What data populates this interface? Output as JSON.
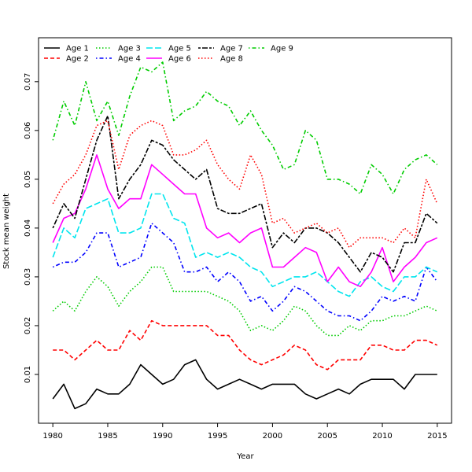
{
  "chart_data": {
    "type": "line",
    "title": "",
    "xlabel": "Year",
    "ylabel": "Stock mean weight",
    "xlim": [
      1978.7,
      2016.3
    ],
    "ylim": [
      0.0,
      0.079
    ],
    "x_ticks": [
      1980,
      1985,
      1990,
      1995,
      2000,
      2005,
      2010,
      2015
    ],
    "y_ticks": [
      0.01,
      0.02,
      0.03,
      0.04,
      0.05,
      0.06,
      0.07
    ],
    "grid": false,
    "legend_position": "top-left",
    "x": [
      1980,
      1981,
      1982,
      1983,
      1984,
      1985,
      1986,
      1987,
      1988,
      1989,
      1990,
      1991,
      1992,
      1993,
      1994,
      1995,
      1996,
      1997,
      1998,
      1999,
      2000,
      2001,
      2002,
      2003,
      2004,
      2005,
      2006,
      2007,
      2008,
      2009,
      2010,
      2011,
      2012,
      2013,
      2014,
      2015
    ],
    "series": [
      {
        "name": "Age 1",
        "color": "#000000",
        "dash": "solid",
        "values": [
          0.005,
          0.008,
          0.003,
          0.004,
          0.007,
          0.006,
          0.006,
          0.008,
          0.012,
          0.01,
          0.008,
          0.009,
          0.012,
          0.013,
          0.009,
          0.007,
          0.008,
          0.009,
          0.008,
          0.007,
          0.008,
          0.008,
          0.008,
          0.006,
          0.005,
          0.006,
          0.007,
          0.006,
          0.008,
          0.009,
          0.009,
          0.009,
          0.007,
          0.01,
          0.01,
          0.01
        ]
      },
      {
        "name": "Age 2",
        "color": "#ff0000",
        "dash": "dashed",
        "values": [
          0.015,
          0.015,
          0.013,
          0.015,
          0.017,
          0.015,
          0.015,
          0.019,
          0.017,
          0.021,
          0.02,
          0.02,
          0.02,
          0.02,
          0.02,
          0.018,
          0.018,
          0.015,
          0.013,
          0.012,
          0.013,
          0.014,
          0.016,
          0.015,
          0.012,
          0.011,
          0.013,
          0.013,
          0.013,
          0.016,
          0.016,
          0.015,
          0.015,
          0.017,
          0.017,
          0.016
        ]
      },
      {
        "name": "Age 3",
        "color": "#00cc00",
        "dash": "dotted",
        "values": [
          0.023,
          0.025,
          0.023,
          0.027,
          0.03,
          0.028,
          0.024,
          0.027,
          0.029,
          0.032,
          0.032,
          0.027,
          0.027,
          0.027,
          0.027,
          0.026,
          0.025,
          0.023,
          0.019,
          0.02,
          0.019,
          0.021,
          0.024,
          0.023,
          0.02,
          0.018,
          0.018,
          0.02,
          0.019,
          0.021,
          0.021,
          0.022,
          0.022,
          0.023,
          0.024,
          0.023
        ]
      },
      {
        "name": "Age 4",
        "color": "#0000ff",
        "dash": "dotdash",
        "values": [
          0.032,
          0.033,
          0.033,
          0.035,
          0.039,
          0.039,
          0.032,
          0.033,
          0.034,
          0.041,
          0.039,
          0.037,
          0.031,
          0.031,
          0.032,
          0.029,
          0.031,
          0.029,
          0.025,
          0.026,
          0.023,
          0.025,
          0.028,
          0.027,
          0.025,
          0.023,
          0.022,
          0.022,
          0.021,
          0.023,
          0.026,
          0.025,
          0.026,
          0.025,
          0.032,
          0.029
        ]
      },
      {
        "name": "Age 5",
        "color": "#00e5ee",
        "dash": "longdash",
        "values": [
          0.034,
          0.04,
          0.038,
          0.044,
          0.045,
          0.046,
          0.039,
          0.039,
          0.04,
          0.047,
          0.047,
          0.042,
          0.041,
          0.034,
          0.035,
          0.034,
          0.035,
          0.034,
          0.032,
          0.031,
          0.028,
          0.029,
          0.03,
          0.03,
          0.031,
          0.029,
          0.027,
          0.026,
          0.029,
          0.03,
          0.028,
          0.027,
          0.03,
          0.03,
          0.032,
          0.031
        ]
      },
      {
        "name": "Age 6",
        "color": "#ff00ff",
        "dash": "solid",
        "values": [
          0.037,
          0.042,
          0.043,
          0.048,
          0.055,
          0.048,
          0.044,
          0.046,
          0.046,
          0.053,
          0.051,
          0.049,
          0.047,
          0.047,
          0.04,
          0.038,
          0.039,
          0.037,
          0.039,
          0.04,
          0.032,
          0.032,
          0.034,
          0.036,
          0.035,
          0.029,
          0.032,
          0.029,
          0.028,
          0.031,
          0.036,
          0.029,
          0.032,
          0.034,
          0.037,
          0.038
        ]
      },
      {
        "name": "Age 7",
        "color": "#000000",
        "dash": "twodash",
        "values": [
          0.04,
          0.045,
          0.042,
          0.05,
          0.058,
          0.063,
          0.046,
          0.05,
          0.053,
          0.058,
          0.057,
          0.054,
          0.052,
          0.05,
          0.052,
          0.044,
          0.043,
          0.043,
          0.044,
          0.045,
          0.036,
          0.039,
          0.037,
          0.04,
          0.04,
          0.039,
          0.037,
          0.034,
          0.031,
          0.035,
          0.034,
          0.031,
          0.037,
          0.037,
          0.043,
          0.041
        ]
      },
      {
        "name": "Age 8",
        "color": "#ff0000",
        "dash": "dotted",
        "values": [
          0.045,
          0.049,
          0.051,
          0.055,
          0.061,
          0.062,
          0.052,
          0.059,
          0.061,
          0.062,
          0.061,
          0.055,
          0.055,
          0.056,
          0.058,
          0.053,
          0.05,
          0.048,
          0.055,
          0.051,
          0.041,
          0.042,
          0.039,
          0.04,
          0.041,
          0.039,
          0.04,
          0.036,
          0.038,
          0.038,
          0.038,
          0.037,
          0.04,
          0.038,
          0.05,
          0.045
        ]
      },
      {
        "name": "Age 9",
        "color": "#00cc00",
        "dash": "dotdash",
        "values": [
          0.058,
          0.066,
          0.061,
          0.07,
          0.062,
          0.066,
          0.059,
          0.067,
          0.073,
          0.072,
          0.074,
          0.062,
          0.064,
          0.065,
          0.068,
          0.066,
          0.065,
          0.061,
          0.064,
          0.06,
          0.057,
          0.052,
          0.053,
          0.06,
          0.058,
          0.05,
          0.05,
          0.049,
          0.047,
          0.053,
          0.051,
          0.047,
          0.052,
          0.054,
          0.055,
          0.053
        ]
      }
    ]
  }
}
